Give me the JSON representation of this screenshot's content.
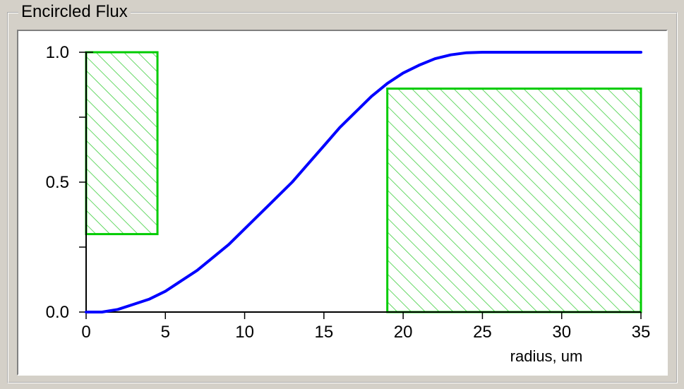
{
  "panel": {
    "title": "Encircled Flux"
  },
  "chart_data": {
    "type": "line",
    "title": "",
    "xlabel": "radius, um",
    "ylabel": "",
    "xlim": [
      0,
      35
    ],
    "ylim": [
      0,
      1.0
    ],
    "xticks": [
      0,
      5,
      10,
      15,
      20,
      25,
      30,
      35
    ],
    "xtick_labels": [
      "0",
      "5",
      "10",
      "15",
      "20",
      "25",
      "30",
      "35"
    ],
    "yticks": [
      0.0,
      0.5,
      1.0
    ],
    "ytick_labels": [
      "0.0",
      "0.5",
      "1.0"
    ],
    "yminor_ticks": [
      0.25,
      0.75
    ],
    "grid": false,
    "series": [
      {
        "color": "#0000ff",
        "x": [
          0,
          1,
          2,
          3,
          4,
          5,
          6,
          7,
          8,
          9,
          10,
          11,
          12,
          13,
          14,
          15,
          16,
          17,
          18,
          19,
          20,
          21,
          22,
          23,
          24,
          25,
          26,
          28,
          30,
          32,
          35
        ],
        "y": [
          0.0,
          0.0,
          0.01,
          0.03,
          0.05,
          0.08,
          0.12,
          0.16,
          0.21,
          0.26,
          0.32,
          0.38,
          0.44,
          0.5,
          0.57,
          0.64,
          0.71,
          0.77,
          0.83,
          0.88,
          0.92,
          0.95,
          0.975,
          0.99,
          0.998,
          1.0,
          1.0,
          1.0,
          1.0,
          1.0,
          1.0
        ]
      }
    ],
    "regions": [
      {
        "x0": 0,
        "x1": 4.5,
        "y0": 0.3,
        "y1": 1.0,
        "color": "#00cc00",
        "pattern": "diagonal-hatch"
      },
      {
        "x0": 19,
        "x1": 35,
        "y0": 0.0,
        "y1": 0.86,
        "color": "#00cc00",
        "pattern": "diagonal-hatch"
      }
    ]
  }
}
